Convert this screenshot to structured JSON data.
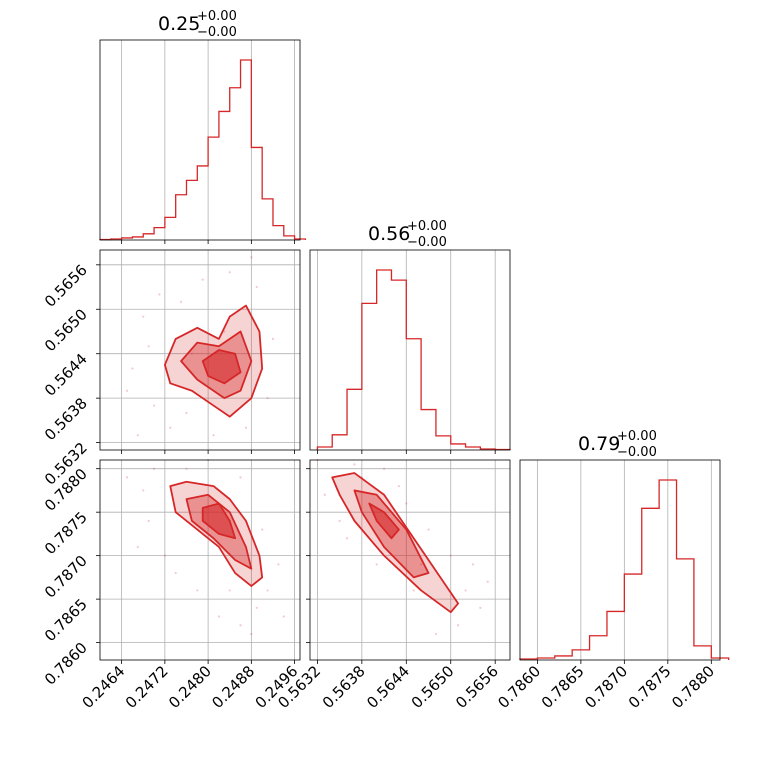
{
  "theme": {
    "line_color": "#d62728",
    "fill_color": "#d62728",
    "grid_color": "#b0b0b0",
    "axis_color": "#000000"
  },
  "chart_data": {
    "type": "corner",
    "parameters": [
      {
        "title_value": "0.25",
        "title_plus": "+0.00",
        "title_minus": "−0.00",
        "range": [
          0.246,
          0.2497
        ],
        "ticks": [
          0.2464,
          0.2472,
          0.248,
          0.2488,
          0.2496
        ],
        "tick_labels": [
          "0.2464",
          "0.2472",
          "0.2480",
          "0.2488",
          "0.2496"
        ],
        "histogram": {
          "bins": [
            0.246,
            0.2462,
            0.2464,
            0.2466,
            0.2468,
            0.247,
            0.2472,
            0.2474,
            0.2476,
            0.2478,
            0.248,
            0.2482,
            0.2484,
            0.2486,
            0.2488,
            0.249,
            0.2492,
            0.2494,
            0.2496
          ],
          "counts": [
            0.5,
            1,
            2,
            3,
            6,
            12,
            22,
            44,
            58,
            72,
            100,
            125,
            148,
            175,
            90,
            40,
            14,
            4,
            1
          ]
        }
      },
      {
        "title_value": "0.56",
        "title_plus": "+0.00",
        "title_minus": "−0.00",
        "range": [
          0.5631,
          0.5658
        ],
        "ticks": [
          0.5632,
          0.5638,
          0.5644,
          0.565,
          0.5656
        ],
        "tick_labels": [
          "0.5632",
          "0.5638",
          "0.5644",
          "0.5650",
          "0.5656"
        ],
        "histogram": {
          "bins": [
            0.5632,
            0.5634,
            0.5636,
            0.5638,
            0.564,
            0.5642,
            0.5644,
            0.5646,
            0.5648,
            0.565,
            0.5652,
            0.5654,
            0.5656
          ],
          "counts": [
            3,
            15,
            60,
            145,
            178,
            168,
            110,
            40,
            14,
            6,
            3,
            1,
            0.5
          ]
        }
      },
      {
        "title_value": "0.79",
        "title_plus": "+0.00",
        "title_minus": "−0.00",
        "range": [
          0.7858,
          0.7881
        ],
        "ticks": [
          0.786,
          0.7865,
          0.787,
          0.7875,
          0.788
        ],
        "tick_labels": [
          "0.7860",
          "0.7865",
          "0.7870",
          "0.7875",
          "0.7880"
        ],
        "histogram": {
          "bins": [
            0.7858,
            0.786,
            0.7862,
            0.7864,
            0.7866,
            0.7868,
            0.787,
            0.7872,
            0.7874,
            0.7876,
            0.7878,
            0.788
          ],
          "counts": [
            1,
            2,
            4,
            10,
            24,
            48,
            85,
            150,
            178,
            100,
            14,
            2
          ]
        }
      }
    ],
    "pairs": [
      {
        "row": 1,
        "col": 0,
        "x_param": 0,
        "y_param": 1,
        "contours": [
          [
            [
              0.2472,
              0.56425
            ],
            [
              0.2474,
              0.5646
            ],
            [
              0.2478,
              0.56475
            ],
            [
              0.2482,
              0.5646
            ],
            [
              0.2484,
              0.5649
            ],
            [
              0.2487,
              0.56505
            ],
            [
              0.24895,
              0.5647
            ],
            [
              0.249,
              0.5642
            ],
            [
              0.2488,
              0.5638
            ],
            [
              0.2484,
              0.56355
            ],
            [
              0.2481,
              0.5637
            ],
            [
              0.2477,
              0.5639
            ],
            [
              0.2473,
              0.564
            ]
          ],
          [
            [
              0.2475,
              0.5643
            ],
            [
              0.2478,
              0.56455
            ],
            [
              0.2482,
              0.5645
            ],
            [
              0.2486,
              0.5647
            ],
            [
              0.2488,
              0.5643
            ],
            [
              0.2486,
              0.5639
            ],
            [
              0.2483,
              0.5638
            ],
            [
              0.2478,
              0.56405
            ]
          ],
          [
            [
              0.2479,
              0.5643
            ],
            [
              0.2482,
              0.56445
            ],
            [
              0.2485,
              0.5644
            ],
            [
              0.2486,
              0.56415
            ],
            [
              0.2483,
              0.564
            ],
            [
              0.248,
              0.5641
            ]
          ]
        ],
        "scatter": [
          [
            0.2466,
            0.5642
          ],
          [
            0.2468,
            0.5649
          ],
          [
            0.247,
            0.5637
          ],
          [
            0.2469,
            0.5645
          ],
          [
            0.2471,
            0.5652
          ],
          [
            0.2473,
            0.5634
          ],
          [
            0.2476,
            0.5636
          ],
          [
            0.2479,
            0.5654
          ],
          [
            0.2481,
            0.5633
          ],
          [
            0.2484,
            0.5655
          ],
          [
            0.2487,
            0.5634
          ],
          [
            0.2489,
            0.5653
          ],
          [
            0.2491,
            0.5638
          ],
          [
            0.2492,
            0.5646
          ],
          [
            0.2488,
            0.5657
          ],
          [
            0.2475,
            0.5651
          ],
          [
            0.2465,
            0.5639
          ],
          [
            0.2467,
            0.5633
          ],
          [
            0.2483,
            0.5647
          ],
          [
            0.2477,
            0.5644
          ]
        ]
      },
      {
        "row": 2,
        "col": 0,
        "x_param": 0,
        "y_param": 2,
        "contours": [
          [
            [
              0.2473,
              0.7878
            ],
            [
              0.2476,
              0.78785
            ],
            [
              0.2481,
              0.7878
            ],
            [
              0.2484,
              0.78765
            ],
            [
              0.2487,
              0.7874
            ],
            [
              0.24895,
              0.787
            ],
            [
              0.249,
              0.78675
            ],
            [
              0.2488,
              0.78665
            ],
            [
              0.2485,
              0.7868
            ],
            [
              0.2482,
              0.7871
            ],
            [
              0.2478,
              0.7873
            ],
            [
              0.2474,
              0.7875
            ]
          ],
          [
            [
              0.2476,
              0.78765
            ],
            [
              0.248,
              0.7877
            ],
            [
              0.2484,
              0.7875
            ],
            [
              0.2487,
              0.7871
            ],
            [
              0.2488,
              0.78685
            ],
            [
              0.2485,
              0.78695
            ],
            [
              0.2481,
              0.7872
            ],
            [
              0.2477,
              0.7874
            ]
          ],
          [
            [
              0.2479,
              0.78755
            ],
            [
              0.2482,
              0.7876
            ],
            [
              0.2484,
              0.7874
            ],
            [
              0.2485,
              0.7872
            ],
            [
              0.2482,
              0.78725
            ],
            [
              0.2479,
              0.7874
            ]
          ]
        ],
        "scatter": [
          [
            0.2465,
            0.7879
          ],
          [
            0.2468,
            0.78775
          ],
          [
            0.247,
            0.788
          ],
          [
            0.2472,
            0.787
          ],
          [
            0.2474,
            0.7868
          ],
          [
            0.2478,
            0.7866
          ],
          [
            0.2482,
            0.7863
          ],
          [
            0.2486,
            0.7862
          ],
          [
            0.2489,
            0.7864
          ],
          [
            0.2491,
            0.7866
          ],
          [
            0.2493,
            0.7869
          ],
          [
            0.2494,
            0.7863
          ],
          [
            0.249,
            0.7873
          ],
          [
            0.2486,
            0.7879
          ],
          [
            0.248,
            0.7881
          ],
          [
            0.2469,
            0.7874
          ],
          [
            0.2476,
            0.788
          ],
          [
            0.2484,
            0.7866
          ],
          [
            0.2488,
            0.7861
          ],
          [
            0.2467,
            0.7871
          ]
        ]
      },
      {
        "row": 2,
        "col": 1,
        "x_param": 1,
        "y_param": 2,
        "contours": [
          [
            [
              0.5634,
              0.7879
            ],
            [
              0.5637,
              0.78795
            ],
            [
              0.5641,
              0.7877
            ],
            [
              0.5645,
              0.7872
            ],
            [
              0.5649,
              0.7867
            ],
            [
              0.5651,
              0.78645
            ],
            [
              0.565,
              0.78635
            ],
            [
              0.5646,
              0.7866
            ],
            [
              0.5641,
              0.787
            ],
            [
              0.5637,
              0.7874
            ],
            [
              0.5635,
              0.7877
            ]
          ],
          [
            [
              0.5637,
              0.78775
            ],
            [
              0.564,
              0.7877
            ],
            [
              0.5644,
              0.7873
            ],
            [
              0.5647,
              0.7868
            ],
            [
              0.5645,
              0.78675
            ],
            [
              0.5641,
              0.7871
            ],
            [
              0.5638,
              0.7875
            ]
          ],
          [
            [
              0.5639,
              0.7876
            ],
            [
              0.5641,
              0.7875
            ],
            [
              0.5643,
              0.7873
            ],
            [
              0.5642,
              0.7872
            ],
            [
              0.564,
              0.7874
            ]
          ]
        ],
        "scatter": [
          [
            0.5632,
            0.7881
          ],
          [
            0.5633,
            0.7877
          ],
          [
            0.5635,
            0.7874
          ],
          [
            0.5638,
            0.7879
          ],
          [
            0.5641,
            0.788
          ],
          [
            0.5644,
            0.7876
          ],
          [
            0.5647,
            0.7873
          ],
          [
            0.565,
            0.787
          ],
          [
            0.5652,
            0.7866
          ],
          [
            0.5654,
            0.7864
          ],
          [
            0.5653,
            0.7869
          ],
          [
            0.5645,
            0.7866
          ],
          [
            0.564,
            0.7869
          ],
          [
            0.5636,
            0.7872
          ],
          [
            0.5648,
            0.7861
          ],
          [
            0.5643,
            0.7878
          ],
          [
            0.5637,
            0.78805
          ],
          [
            0.5651,
            0.7862
          ],
          [
            0.5655,
            0.7867
          ],
          [
            0.5646,
            0.7869
          ]
        ]
      }
    ]
  }
}
